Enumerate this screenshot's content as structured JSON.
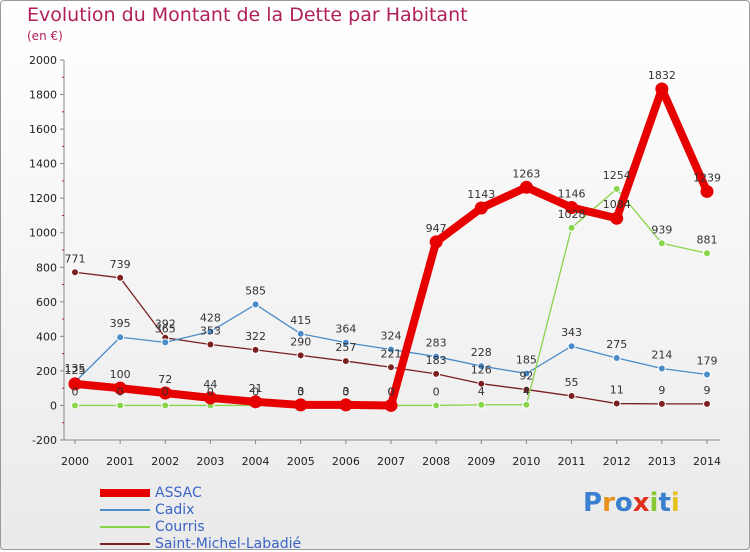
{
  "chart_data": {
    "type": "line",
    "title": "Evolution du Montant de la Dette par Habitant",
    "subtitle": "(en €)",
    "ylim": [
      -200,
      2000
    ],
    "yticks": [
      -200,
      0,
      200,
      400,
      600,
      800,
      1000,
      1200,
      1400,
      1600,
      1800,
      2000
    ],
    "x": [
      "2000",
      "2001",
      "2002",
      "2003",
      "2004",
      "2005",
      "2006",
      "2007",
      "2008",
      "2009",
      "2010",
      "2011",
      "2012",
      "2013",
      "2014"
    ],
    "grid": false,
    "legend_position": "bottom-left",
    "series": [
      {
        "name": "ASSAC",
        "color": "#e60000",
        "values": [
          125,
          100,
          72,
          44,
          21,
          3,
          3,
          0,
          947,
          1143,
          1263,
          1146,
          1084,
          1832,
          1239
        ],
        "labels": [
          "125",
          "100",
          "72",
          "44",
          "21",
          "3",
          "3",
          "0",
          "947",
          "1143",
          "1263",
          "1146",
          "1084",
          "1832",
          "1239"
        ]
      },
      {
        "name": "Cadix",
        "color": "#4a8cc8",
        "values": [
          135,
          395,
          365,
          428,
          585,
          415,
          364,
          324,
          283,
          228,
          185,
          343,
          275,
          214,
          179
        ],
        "labels": [
          "135",
          "395",
          "365",
          "428",
          "585",
          "415",
          "364",
          "324",
          "283",
          "228",
          "185",
          "343",
          "275",
          "214",
          "179"
        ]
      },
      {
        "name": "Courris",
        "color": "#88d44a",
        "values": [
          0,
          0,
          0,
          0,
          0,
          0,
          0,
          0,
          0,
          4,
          4,
          1028,
          1254,
          939,
          881
        ],
        "labels": [
          "0",
          "0",
          "0",
          "0",
          "0",
          "0",
          "0",
          "0",
          "0",
          "4",
          "4",
          "1028",
          "1254",
          "939",
          "881"
        ]
      },
      {
        "name": "Saint-Michel-Labadié",
        "color": "#7a2020",
        "values": [
          771,
          739,
          392,
          353,
          322,
          290,
          257,
          221,
          183,
          126,
          92,
          55,
          11,
          9,
          9
        ],
        "labels": [
          "771",
          "739",
          "392",
          "353",
          "322",
          "290",
          "257",
          "221",
          "183",
          "126",
          "92",
          "55",
          "11",
          "9",
          "9"
        ]
      }
    ]
  },
  "logo": {
    "letters": [
      "P",
      "r",
      "o",
      "x",
      "i",
      "t",
      "i"
    ],
    "colors": [
      "#3a7fd0",
      "#e8901c",
      "#3a7fd0",
      "#e0301e",
      "#88c830",
      "#3a7fd0",
      "#e8c020"
    ]
  }
}
